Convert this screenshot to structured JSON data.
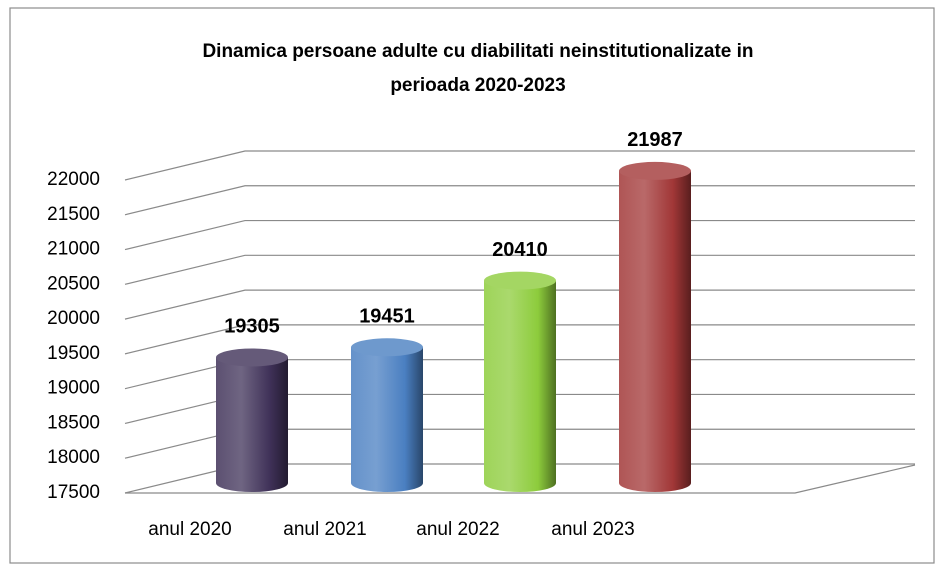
{
  "chart_data": {
    "type": "bar",
    "title_lines": [
      "Dinamica persoane adulte cu diabilitati neinstitutionalizate in",
      "perioada 2020-2023"
    ],
    "categories": [
      "anul 2020",
      "anul 2021",
      "anul 2022",
      "anul 2023"
    ],
    "values": [
      19305,
      19451,
      20410,
      21987
    ],
    "colors": [
      "#3f3158",
      "#4a7fc1",
      "#8dcc3c",
      "#a13737"
    ],
    "ylim": [
      17500,
      22000
    ],
    "yticks": [
      17500,
      18000,
      18500,
      19000,
      19500,
      20000,
      20500,
      21000,
      21500,
      22000
    ],
    "grid": true
  }
}
